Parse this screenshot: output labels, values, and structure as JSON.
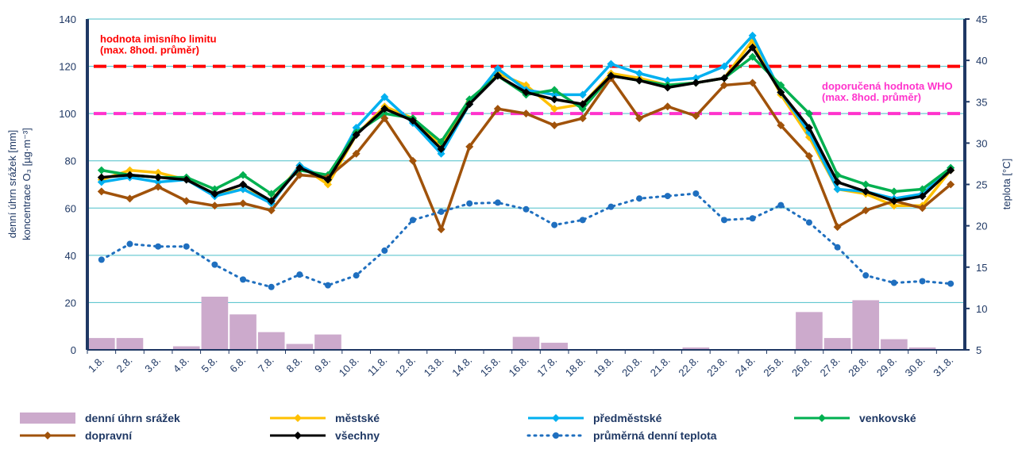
{
  "chart_data": {
    "type": "line",
    "categories": [
      "1.8.",
      "2.8.",
      "3.8.",
      "4.8.",
      "5.8.",
      "6.8.",
      "7.8.",
      "8.8.",
      "9.8.",
      "10.8.",
      "11.8.",
      "12.8.",
      "13.8.",
      "14.8.",
      "15.8.",
      "16.8.",
      "17.8.",
      "18.8.",
      "19.8.",
      "20.8.",
      "21.8.",
      "22.8.",
      "23.8.",
      "24.8.",
      "25.8.",
      "26.8.",
      "27.8.",
      "28.8.",
      "29.8.",
      "30.8.",
      "31.8."
    ],
    "ylabel": [
      "denní úhrn srážek [mm]",
      "koncentrace O₃ [µg·m⁻³]"
    ],
    "y2label": "teplota [°C]",
    "ylim": [
      0,
      140
    ],
    "yticks": [
      0,
      20,
      40,
      60,
      80,
      100,
      120,
      140
    ],
    "y2lim": [
      5,
      45
    ],
    "y2ticks": [
      5,
      10,
      15,
      20,
      25,
      30,
      35,
      40,
      45
    ],
    "grid": true,
    "reference_lines": [
      {
        "value": 120,
        "color": "#ff0000",
        "label": "hodnota imisního limitu",
        "sublabel": "(max. 8hod. průměr)",
        "side": "left"
      },
      {
        "value": 100,
        "color": "#ff33cc",
        "label": "doporučená hodnota WHO",
        "sublabel": "(max. 8hod. průměr)",
        "side": "right"
      }
    ],
    "series": [
      {
        "name": "denní úhrn srážek",
        "type": "bar",
        "color": "#ccaacc",
        "values": [
          5,
          5,
          0,
          1.5,
          22.5,
          15,
          7.5,
          2.5,
          6.5,
          0,
          0,
          0,
          0,
          0,
          0,
          5.5,
          3,
          0,
          0,
          0,
          0,
          1,
          0,
          0,
          0,
          16,
          5,
          21,
          4.5,
          1,
          0
        ]
      },
      {
        "name": "městské",
        "color": "#ffc000",
        "values": [
          72,
          76,
          75,
          72,
          66,
          68,
          63,
          78,
          70,
          91,
          103,
          98,
          86,
          105,
          117,
          112,
          102,
          104,
          117,
          115,
          112,
          113,
          115,
          131,
          108,
          90,
          68,
          66,
          61,
          61,
          76
        ]
      },
      {
        "name": "předměstské",
        "color": "#00b0f0",
        "values": [
          71,
          73,
          71,
          72,
          65,
          68,
          62,
          78,
          72,
          94,
          107,
          96,
          83,
          104,
          119,
          110,
          108,
          108,
          121,
          117,
          114,
          115,
          120,
          133,
          109,
          92,
          68,
          67,
          64,
          66,
          77
        ]
      },
      {
        "name": "venkovské",
        "color": "#00b050",
        "values": [
          76,
          74,
          73,
          73,
          68,
          74,
          66,
          76,
          74,
          92,
          100,
          98,
          88,
          106,
          116,
          108,
          110,
          102,
          116,
          114,
          112,
          113,
          115,
          124,
          112,
          100,
          74,
          70,
          67,
          68,
          77
        ]
      },
      {
        "name": "dopravní",
        "color": "#a0520a",
        "values": [
          67,
          64,
          69,
          63,
          61,
          62,
          59,
          74,
          73,
          83,
          98,
          80,
          51,
          86,
          102,
          100,
          95,
          98,
          115,
          98,
          103,
          99,
          112,
          113,
          95,
          82,
          52,
          59,
          63,
          60,
          70
        ]
      },
      {
        "name": "všechny",
        "color": "#000000",
        "values": [
          73,
          74,
          73,
          72,
          66,
          70,
          63,
          77,
          72,
          91,
          102,
          97,
          85,
          104,
          116,
          109,
          106,
          104,
          116,
          114,
          111,
          113,
          115,
          128,
          109,
          94,
          71,
          67,
          63,
          65,
          76
        ]
      },
      {
        "name": "průměrná denní teplota",
        "color": "#1f6fbf",
        "axis": "y2",
        "dash": "dotted",
        "marker": "circle",
        "values": [
          15.9,
          17.8,
          17.5,
          17.5,
          15.3,
          13.5,
          12.6,
          14.1,
          12.8,
          14.0,
          17.0,
          20.7,
          21.7,
          22.7,
          22.8,
          22.0,
          20.1,
          20.7,
          22.3,
          23.3,
          23.6,
          23.9,
          20.7,
          20.9,
          22.5,
          20.4,
          17.4,
          14.0,
          13.1,
          13.3,
          13.0
        ]
      }
    ]
  }
}
